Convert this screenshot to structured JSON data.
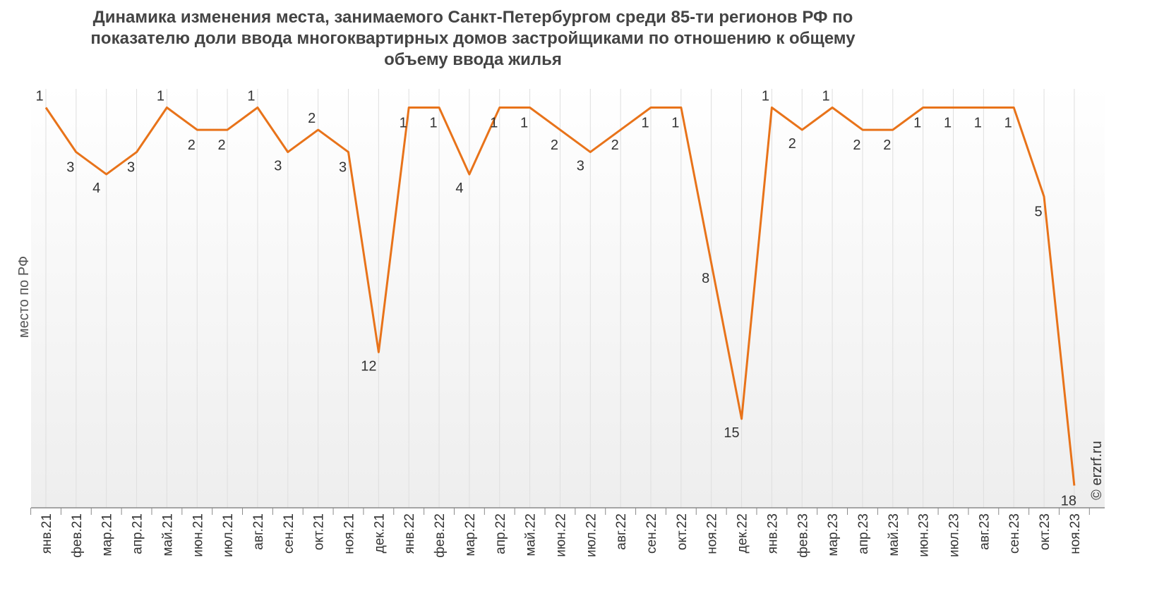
{
  "chart_data": {
    "type": "line",
    "title": "Динамика изменения места, занимаемого Санкт-Петербургом среди 85-ти регионов РФ по показателю доли ввода многоквартирных домов застройщиками по отношению к общему объему ввода жилья",
    "xlabel": "",
    "ylabel": "место по РФ",
    "categories": [
      "янв.21",
      "фев.21",
      "мар.21",
      "апр.21",
      "май.21",
      "июн.21",
      "июл.21",
      "авг.21",
      "сен.21",
      "окт.21",
      "ноя.21",
      "дек.21",
      "янв.22",
      "фев.22",
      "мар.22",
      "апр.22",
      "май.22",
      "июн.22",
      "июл.22",
      "авг.22",
      "сен.22",
      "окт.22",
      "ноя.22",
      "дек.22",
      "янв.23",
      "фев.23",
      "мар.23",
      "апр.23",
      "май.23",
      "июн.23",
      "июл.23",
      "авг.23",
      "сен.23",
      "окт.23",
      "ноя.23"
    ],
    "values": [
      1,
      3,
      4,
      3,
      1,
      2,
      2,
      1,
      3,
      2,
      3,
      12,
      1,
      1,
      4,
      1,
      1,
      2,
      3,
      2,
      1,
      1,
      8,
      15,
      1,
      2,
      1,
      2,
      2,
      1,
      1,
      1,
      1,
      5,
      18
    ],
    "ylim": [
      0,
      19
    ],
    "y_inverted": true,
    "line_color": "#e8731a",
    "grid": "vertical",
    "legend": "none"
  },
  "credit": "© erzrf.ru"
}
